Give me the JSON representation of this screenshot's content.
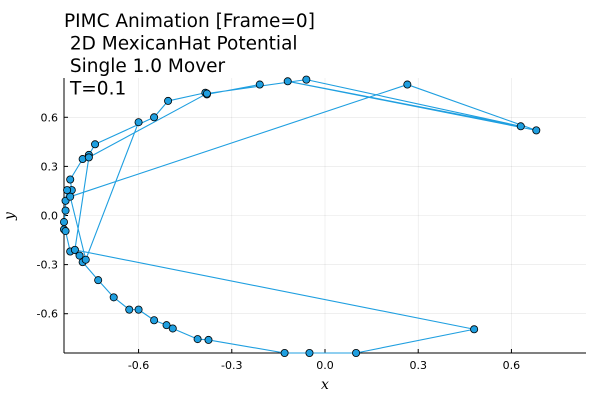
{
  "chart_data": {
    "type": "line",
    "title_lines": [
      "PIMC Animation [Frame=0]",
      " 2D MexicanHat Potential",
      " Single 1.0 Mover",
      "T=0.1"
    ],
    "xlabel": "x",
    "ylabel": "y",
    "xlim": [
      -0.84,
      0.84
    ],
    "ylim": [
      -0.84,
      0.84
    ],
    "x_ticks": [
      -0.6,
      -0.3,
      0.0,
      0.3,
      0.6
    ],
    "y_ticks": [
      -0.6,
      -0.3,
      0.0,
      0.3,
      0.6
    ],
    "x_tick_labels": [
      "-0.6",
      "-0.3",
      "0.0",
      "0.3",
      "0.6"
    ],
    "y_tick_labels": [
      "-0.6",
      "-0.3",
      "0.0",
      "0.3",
      "0.6"
    ],
    "grid": true,
    "legend": "none",
    "color": "#1f9fe0",
    "marker_edge": "#000000",
    "series": [
      {
        "points": [
          [
            -0.21,
            0.8
          ],
          [
            -0.38,
            0.74
          ],
          [
            -0.385,
            0.75
          ],
          [
            -0.505,
            0.7
          ],
          [
            -0.55,
            0.6
          ],
          [
            -0.74,
            0.435
          ],
          [
            -0.76,
            0.37
          ],
          [
            -0.78,
            0.345
          ],
          [
            -0.82,
            0.22
          ],
          [
            -0.815,
            0.155
          ],
          [
            -0.83,
            0.155
          ],
          [
            -0.835,
            0.09
          ],
          [
            -0.835,
            0.03
          ],
          [
            -0.84,
            -0.04
          ],
          [
            -0.84,
            -0.085
          ],
          [
            -0.835,
            -0.095
          ],
          [
            -0.82,
            -0.22
          ],
          [
            -0.79,
            -0.245
          ],
          [
            -0.78,
            -0.285
          ],
          [
            -0.73,
            -0.395
          ],
          [
            -0.68,
            -0.5
          ],
          [
            -0.63,
            -0.575
          ],
          [
            -0.6,
            -0.575
          ],
          [
            -0.55,
            -0.64
          ],
          [
            -0.51,
            -0.67
          ],
          [
            -0.49,
            -0.69
          ],
          [
            -0.41,
            -0.755
          ],
          [
            -0.375,
            -0.76
          ],
          [
            -0.13,
            -0.84
          ],
          [
            -0.05,
            -0.84
          ],
          [
            0.1,
            -0.84
          ],
          [
            0.48,
            -0.695
          ],
          [
            -0.805,
            -0.21
          ],
          [
            -0.76,
            0.355
          ],
          [
            -0.38,
            0.745
          ],
          [
            -0.06,
            0.83
          ],
          [
            0.63,
            0.545
          ],
          [
            -0.12,
            0.82
          ],
          [
            0.68,
            0.52
          ],
          [
            0.265,
            0.8
          ],
          [
            -0.82,
            0.115
          ],
          [
            -0.77,
            -0.27
          ],
          [
            -0.6,
            0.57
          ]
        ]
      }
    ]
  }
}
